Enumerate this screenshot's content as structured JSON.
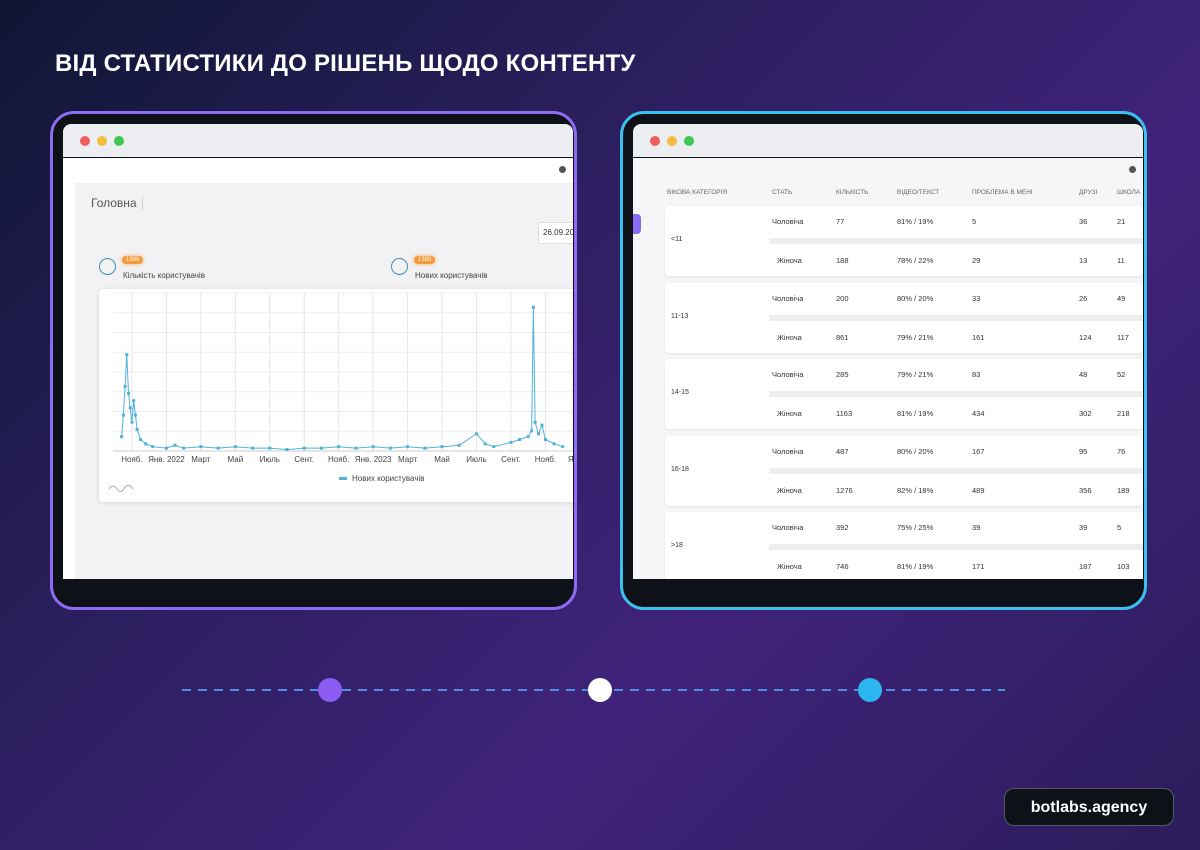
{
  "title": "ВІД СТАТИСТИКИ ДО РІШЕНЬ ЩОДО КОНТЕНТУ",
  "dashboard": {
    "page_title": "Головна",
    "date": "26.09.20",
    "stats": [
      {
        "value": 1396,
        "label": "Кількість користувачів"
      },
      {
        "value": 1395,
        "label": "Нових користувачів"
      }
    ],
    "chart": {
      "type": "line",
      "xlim": [
        -1.1,
        25.6
      ],
      "ylim": [
        0,
        110
      ],
      "xticks": [
        {
          "value": 0,
          "label": "Нояб."
        },
        {
          "value": 2,
          "label": "Янв. 2022"
        },
        {
          "value": 4,
          "label": "Март"
        },
        {
          "value": 6,
          "label": "Май"
        },
        {
          "value": 8,
          "label": "Июль"
        },
        {
          "value": 10,
          "label": "Сент."
        },
        {
          "value": 12,
          "label": "Нояб."
        },
        {
          "value": 14,
          "label": "Янв. 2023"
        },
        {
          "value": 16,
          "label": "Март"
        },
        {
          "value": 18,
          "label": "Май"
        },
        {
          "value": 20,
          "label": "Июль"
        },
        {
          "value": 22,
          "label": "Сент."
        },
        {
          "value": 24,
          "label": "Нояб."
        },
        {
          "value": 25.6,
          "label": "Ян"
        }
      ],
      "series": [
        {
          "name": "Нових користувачів",
          "color": "#4fb3d9",
          "x": [
            -0.6,
            -0.5,
            -0.4,
            -0.3,
            -0.2,
            -0.1,
            0,
            0.1,
            0.2,
            0.3,
            0.5,
            0.8,
            1.2,
            2,
            2.5,
            3,
            4,
            5,
            6,
            7,
            8,
            9,
            10,
            11,
            12,
            13,
            14,
            15,
            16,
            17,
            18,
            19,
            20,
            20.5,
            21,
            22,
            22.5,
            23,
            23.2,
            23.3,
            23.4,
            23.6,
            23.8,
            24,
            24.5,
            25
          ],
          "values": [
            10,
            25,
            45,
            67,
            40,
            30,
            20,
            35,
            25,
            15,
            8,
            5,
            3,
            2,
            4,
            2,
            3,
            2,
            3,
            2,
            2,
            1,
            2,
            2,
            3,
            2,
            3,
            2,
            3,
            2,
            3,
            4,
            12,
            5,
            3,
            6,
            8,
            10,
            14,
            100,
            20,
            12,
            18,
            8,
            5,
            3
          ]
        }
      ]
    }
  },
  "table": {
    "columns": [
      "ВІКОВА КАТЕГОРІЯ",
      "СТАТЬ",
      "КІЛЬКІСТЬ",
      "ВІДЕО/ТЕКСТ",
      "ПРОБЛЕМА В МЕНІ",
      "ДРУЗІ",
      "ШКОЛА"
    ],
    "groups": [
      {
        "age": "<11",
        "rows": [
          [
            "Чоловіча",
            77,
            "81% / 19%",
            5,
            36,
            21
          ],
          [
            "Жіноча",
            188,
            "78% / 22%",
            29,
            13,
            11
          ]
        ]
      },
      {
        "age": "11-13",
        "rows": [
          [
            "Чоловіча",
            200,
            "80% / 20%",
            33,
            26,
            49
          ],
          [
            "Жіноча",
            861,
            "79% / 21%",
            161,
            124,
            117
          ]
        ]
      },
      {
        "age": "14-15",
        "rows": [
          [
            "Чоловіча",
            285,
            "79% / 21%",
            83,
            48,
            52
          ],
          [
            "Жіноча",
            1163,
            "81% / 19%",
            434,
            302,
            218
          ]
        ]
      },
      {
        "age": "16-18",
        "rows": [
          [
            "Чоловіча",
            487,
            "80% / 20%",
            167,
            95,
            76
          ],
          [
            "Жіноча",
            1276,
            "82% / 18%",
            489,
            356,
            189
          ]
        ]
      },
      {
        "age": ">18",
        "rows": [
          [
            "Чоловіча",
            392,
            "75% / 25%",
            39,
            39,
            5
          ],
          [
            "Жіноча",
            746,
            "81% / 19%",
            171,
            187,
            103
          ]
        ]
      }
    ]
  },
  "brand": "botlabs.agency"
}
